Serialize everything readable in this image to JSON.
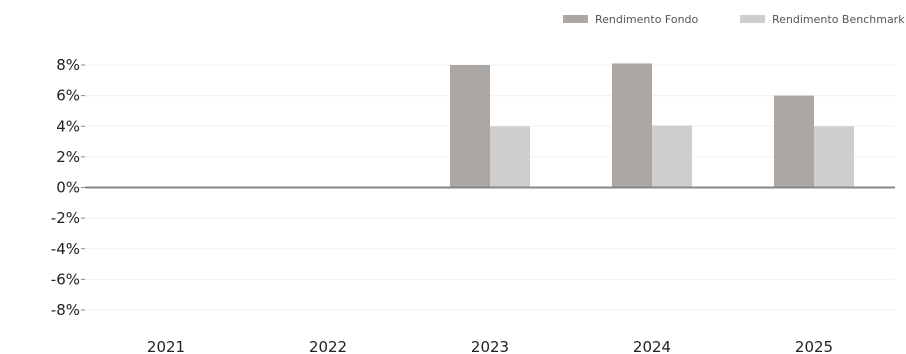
{
  "chart_data": {
    "type": "bar",
    "categories": [
      "2021",
      "2022",
      "2023",
      "2024",
      "2025"
    ],
    "series": [
      {
        "name": "Rendimento Fondo",
        "values": [
          0,
          0,
          8.0,
          8.1,
          6.0
        ],
        "color": "#aba7a5"
      },
      {
        "name": "Rendimento Benchmark",
        "values": [
          0,
          0,
          4.0,
          4.05,
          4.0
        ],
        "color": "#cfcdcd"
      }
    ],
    "y_ticks": [
      "8%",
      "6%",
      "4%",
      "2%",
      "0%",
      "-2%",
      "-4%",
      "-6%",
      "-8%"
    ],
    "y_tick_values": [
      8,
      6,
      4,
      2,
      0,
      -2,
      -4,
      -6,
      -8
    ],
    "ylim": [
      -8,
      8
    ],
    "legend_position": "top-right",
    "grid": true,
    "zero_line_color": "#888888",
    "grid_color": "#f0f0f0"
  }
}
